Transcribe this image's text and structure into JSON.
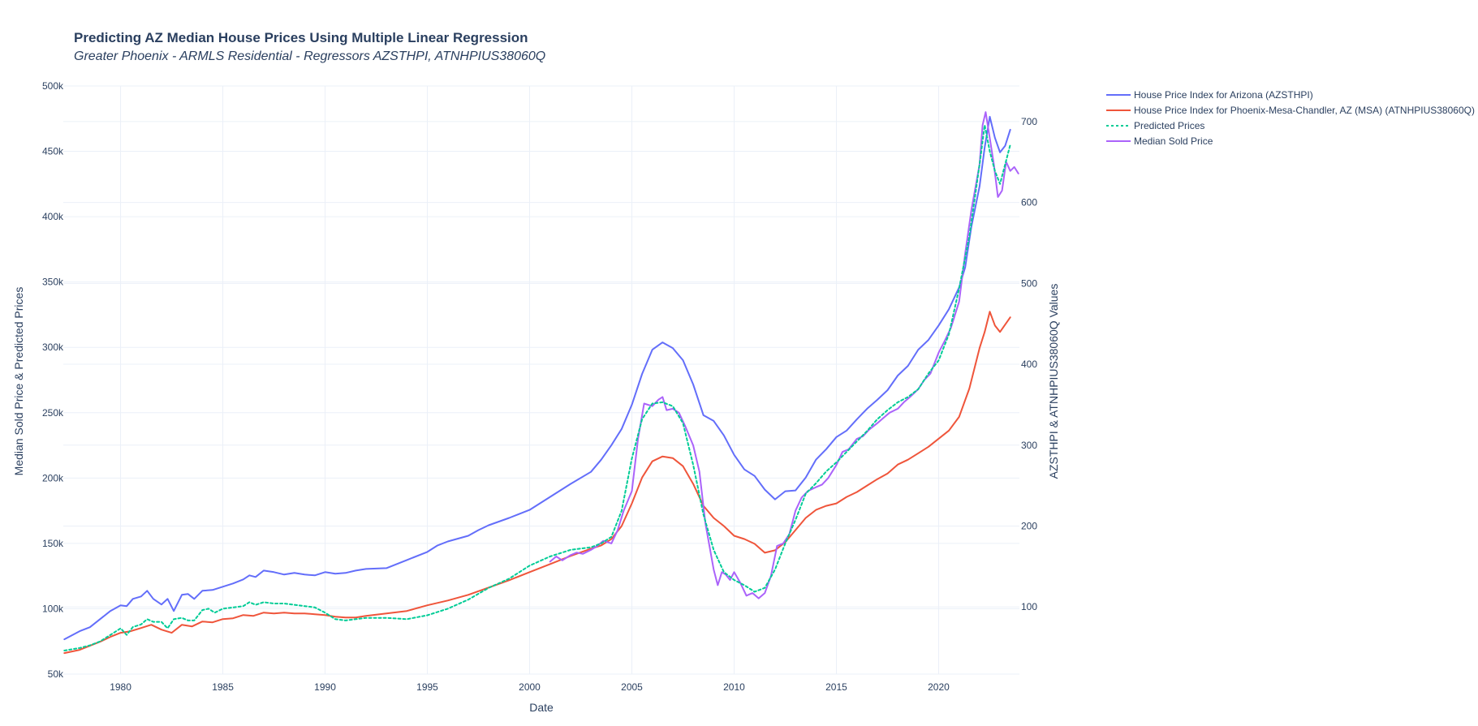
{
  "chart_data": {
    "type": "line",
    "title": "Predicting AZ Median House Prices Using Multiple Linear Regression",
    "subtitle": "Greater Phoenix - ARMLS Residential - Regressors AZSTHPI, ATNHPIUS38060Q",
    "xlabel": "Date",
    "ylabel_left": "Median Sold Price & Predicted Prices",
    "ylabel_right": "AZSTHPI & ATNHPIUS38060Q Values",
    "xlim": [
      1977.2,
      2023.95
    ],
    "ylim_left": [
      50000,
      500000
    ],
    "ylim_right": [
      17,
      744
    ],
    "x_ticks": [
      1980,
      1985,
      1990,
      1995,
      2000,
      2005,
      2010,
      2015,
      2020
    ],
    "x_tick_labels": [
      "1980",
      "1985",
      "1990",
      "1995",
      "2000",
      "2005",
      "2010",
      "2015",
      "2020"
    ],
    "y_left_ticks": [
      50000,
      100000,
      150000,
      200000,
      250000,
      300000,
      350000,
      400000,
      450000,
      500000
    ],
    "y_left_tick_labels": [
      "50k",
      "100k",
      "150k",
      "200k",
      "250k",
      "300k",
      "350k",
      "400k",
      "450k",
      "500k"
    ],
    "y_right_ticks": [
      100,
      200,
      300,
      400,
      500,
      600,
      700
    ],
    "y_right_tick_labels": [
      "100",
      "200",
      "300",
      "400",
      "500",
      "600",
      "700"
    ],
    "grid": true,
    "legend_position": "right",
    "series": [
      {
        "name": "House Price Index for Arizona (AZSTHPI)",
        "axis": "right",
        "color": "#636efa",
        "dash": "solid",
        "x": [
          1977.25,
          1978.0,
          1978.5,
          1979.0,
          1979.5,
          1980.0,
          1980.3,
          1980.6,
          1981.0,
          1981.3,
          1981.6,
          1982.0,
          1982.3,
          1982.6,
          1983.0,
          1983.3,
          1983.6,
          1984.0,
          1984.5,
          1985.0,
          1985.5,
          1986.0,
          1986.3,
          1986.6,
          1987.0,
          1987.5,
          1988.0,
          1988.5,
          1989.0,
          1989.5,
          1990.0,
          1990.5,
          1991.0,
          1991.5,
          1992.0,
          1993.0,
          1994.0,
          1995.0,
          1995.5,
          1996.0,
          1997.0,
          1997.5,
          1998.0,
          1999.0,
          2000.0,
          2000.5,
          2001.0,
          2002.0,
          2003.0,
          2003.5,
          2004.0,
          2004.5,
          2005.0,
          2005.5,
          2006.0,
          2006.5,
          2007.0,
          2007.5,
          2008.0,
          2008.5,
          2009.0,
          2009.5,
          2010.0,
          2010.5,
          2011.0,
          2011.5,
          2012.0,
          2012.5,
          2013.0,
          2013.5,
          2014.0,
          2014.5,
          2015.0,
          2015.5,
          2016.0,
          2016.5,
          2017.0,
          2017.5,
          2018.0,
          2018.5,
          2019.0,
          2019.5,
          2020.0,
          2020.5,
          2021.0,
          2021.3,
          2021.6,
          2022.0,
          2022.25,
          2022.5,
          2022.75,
          2023.0,
          2023.25,
          2023.5
        ],
        "y": [
          60,
          70,
          75,
          85,
          95,
          102,
          101,
          110,
          113,
          120,
          110,
          103,
          110,
          95,
          115,
          116,
          110,
          120,
          121,
          125,
          129,
          134,
          139,
          137,
          145,
          143,
          140,
          142,
          140,
          139,
          143,
          141,
          142,
          145,
          147,
          148,
          158,
          168,
          176,
          181,
          188,
          195,
          201,
          210,
          220,
          228,
          236,
          252,
          267,
          282,
          300,
          320,
          350,
          388,
          418,
          427,
          420,
          405,
          375,
          337,
          330,
          312,
          288,
          270,
          262,
          245,
          233,
          243,
          244,
          260,
          282,
          295,
          310,
          318,
          332,
          345,
          356,
          368,
          386,
          398,
          418,
          430,
          448,
          468,
          495,
          520,
          570,
          620,
          668,
          706,
          680,
          662,
          670,
          690
        ]
      },
      {
        "name": "House Price Index for Phoenix-Mesa-Chandler, AZ (MSA) (ATNHPIUS38060Q)",
        "axis": "right",
        "color": "#ef553b",
        "dash": "solid",
        "x": [
          1977.25,
          1978.0,
          1978.5,
          1979.0,
          1979.5,
          1980.0,
          1980.5,
          1981.0,
          1981.5,
          1982.0,
          1982.5,
          1983.0,
          1983.5,
          1984.0,
          1984.5,
          1985.0,
          1985.5,
          1986.0,
          1986.5,
          1987.0,
          1987.5,
          1988.0,
          1988.5,
          1989.0,
          1989.5,
          1990.0,
          1990.5,
          1991.0,
          1991.5,
          1992.0,
          1993.0,
          1994.0,
          1995.0,
          1996.0,
          1997.0,
          1998.0,
          1999.0,
          2000.0,
          2001.0,
          2002.0,
          2003.0,
          2003.5,
          2004.0,
          2004.5,
          2005.0,
          2005.5,
          2006.0,
          2006.5,
          2007.0,
          2007.5,
          2008.0,
          2008.5,
          2009.0,
          2009.5,
          2010.0,
          2010.5,
          2011.0,
          2011.5,
          2012.0,
          2012.5,
          2013.0,
          2013.5,
          2014.0,
          2014.5,
          2015.0,
          2015.5,
          2016.0,
          2016.5,
          2017.0,
          2017.5,
          2018.0,
          2018.5,
          2019.0,
          2019.5,
          2020.0,
          2020.5,
          2021.0,
          2021.5,
          2022.0,
          2022.25,
          2022.5,
          2022.75,
          2023.0,
          2023.5
        ],
        "y": [
          43,
          47,
          52,
          57,
          63,
          68,
          70,
          74,
          78,
          72,
          68,
          78,
          76,
          82,
          81,
          85,
          86,
          90,
          89,
          93,
          92,
          93,
          92,
          92,
          91,
          90,
          88,
          87,
          87,
          89,
          92,
          95,
          102,
          108,
          115,
          124,
          133,
          143,
          153,
          163,
          172,
          176,
          184,
          200,
          228,
          260,
          280,
          286,
          284,
          274,
          252,
          225,
          210,
          200,
          188,
          184,
          178,
          167,
          170,
          180,
          195,
          210,
          220,
          225,
          228,
          236,
          242,
          250,
          258,
          265,
          276,
          282,
          290,
          298,
          308,
          318,
          335,
          370,
          420,
          440,
          465,
          448,
          440,
          458
        ]
      },
      {
        "name": "Predicted Prices",
        "axis": "left",
        "color": "#00cc96",
        "dash": "dot",
        "x": [
          1977.25,
          1978.0,
          1978.5,
          1979.0,
          1979.5,
          1980.0,
          1980.3,
          1980.6,
          1981.0,
          1981.3,
          1981.6,
          1982.0,
          1982.3,
          1982.6,
          1983.0,
          1983.3,
          1983.6,
          1984.0,
          1984.3,
          1984.6,
          1985.0,
          1985.5,
          1986.0,
          1986.3,
          1986.6,
          1987.0,
          1987.5,
          1988.0,
          1988.5,
          1989.0,
          1989.5,
          1990.0,
          1990.5,
          1991.0,
          1991.5,
          1992.0,
          1993.0,
          1994.0,
          1995.0,
          1996.0,
          1997.0,
          1998.0,
          1999.0,
          2000.0,
          2001.0,
          2002.0,
          2003.0,
          2003.5,
          2004.0,
          2004.5,
          2005.0,
          2005.5,
          2006.0,
          2006.5,
          2007.0,
          2007.5,
          2008.0,
          2008.5,
          2009.0,
          2009.5,
          2010.0,
          2010.5,
          2011.0,
          2011.5,
          2012.0,
          2012.5,
          2013.0,
          2013.5,
          2014.0,
          2014.5,
          2015.0,
          2015.5,
          2016.0,
          2016.5,
          2017.0,
          2017.5,
          2018.0,
          2018.5,
          2019.0,
          2019.5,
          2020.0,
          2020.5,
          2021.0,
          2021.5,
          2022.0,
          2022.25,
          2022.5,
          2022.75,
          2023.0,
          2023.25,
          2023.5
        ],
        "y": [
          68000,
          70000,
          72000,
          75000,
          80000,
          85000,
          80000,
          86000,
          88000,
          92000,
          90000,
          90000,
          85000,
          92000,
          93000,
          91000,
          91000,
          99000,
          100000,
          97000,
          100000,
          101000,
          102000,
          105000,
          103000,
          105000,
          104000,
          104000,
          103000,
          102000,
          101000,
          97000,
          92000,
          91000,
          92000,
          93000,
          93000,
          92000,
          95000,
          100000,
          107000,
          116000,
          123000,
          133000,
          140000,
          145000,
          147000,
          150000,
          155000,
          175000,
          215000,
          245000,
          257000,
          258000,
          255000,
          242000,
          210000,
          172000,
          145000,
          128000,
          122000,
          118000,
          113000,
          116000,
          130000,
          150000,
          168000,
          188000,
          196000,
          205000,
          212000,
          220000,
          228000,
          236000,
          245000,
          252000,
          258000,
          262000,
          268000,
          280000,
          290000,
          310000,
          345000,
          385000,
          440000,
          470000,
          450000,
          435000,
          425000,
          440000,
          455000
        ]
      },
      {
        "name": "Median Sold Price",
        "axis": "left",
        "color": "#ab63fa",
        "dash": "solid",
        "x": [
          2001.0,
          2001.3,
          2001.6,
          2002.0,
          2002.3,
          2002.6,
          2003.0,
          2003.3,
          2003.6,
          2004.0,
          2004.3,
          2004.6,
          2005.0,
          2005.3,
          2005.6,
          2006.0,
          2006.3,
          2006.5,
          2006.7,
          2007.0,
          2007.3,
          2007.6,
          2008.0,
          2008.3,
          2008.6,
          2009.0,
          2009.2,
          2009.4,
          2009.6,
          2009.8,
          2010.0,
          2010.3,
          2010.6,
          2010.9,
          2011.2,
          2011.5,
          2011.8,
          2012.1,
          2012.4,
          2012.7,
          2013.0,
          2013.3,
          2013.6,
          2014.0,
          2014.3,
          2014.6,
          2015.0,
          2015.3,
          2015.6,
          2016.0,
          2016.3,
          2016.6,
          2017.0,
          2017.3,
          2017.6,
          2018.0,
          2018.3,
          2018.6,
          2019.0,
          2019.3,
          2019.6,
          2020.0,
          2020.3,
          2020.6,
          2021.0,
          2021.3,
          2021.6,
          2022.0,
          2022.15,
          2022.3,
          2022.5,
          2022.7,
          2022.9,
          2023.1,
          2023.3,
          2023.5,
          2023.7,
          2023.9
        ],
        "y": [
          136000,
          140000,
          137000,
          141000,
          143000,
          142000,
          145000,
          148000,
          152000,
          150000,
          160000,
          175000,
          190000,
          230000,
          257000,
          255000,
          260000,
          262000,
          252000,
          253000,
          250000,
          240000,
          225000,
          205000,
          165000,
          130000,
          118000,
          128000,
          126000,
          122000,
          128000,
          120000,
          110000,
          112000,
          108000,
          112000,
          125000,
          148000,
          150000,
          157000,
          175000,
          185000,
          190000,
          193000,
          195000,
          200000,
          210000,
          220000,
          222000,
          230000,
          232000,
          237000,
          242000,
          246000,
          250000,
          253000,
          258000,
          262000,
          268000,
          275000,
          280000,
          296000,
          305000,
          315000,
          335000,
          372000,
          405000,
          440000,
          470000,
          480000,
          460000,
          440000,
          415000,
          420000,
          442000,
          435000,
          438000,
          433000
        ]
      }
    ]
  }
}
